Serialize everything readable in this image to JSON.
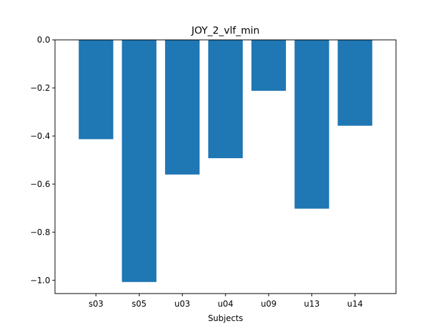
{
  "chart_data": {
    "type": "bar",
    "title": "JOY_2_vlf_min",
    "xlabel": "Subjects",
    "ylabel": "",
    "categories": [
      "s03",
      "s05",
      "u03",
      "u04",
      "u09",
      "u13",
      "u14"
    ],
    "values": [
      -0.413,
      -1.007,
      -0.56,
      -0.492,
      -0.212,
      -0.702,
      -0.357
    ],
    "ylim": [
      -1.055,
      0.0
    ],
    "yticks": [
      0.0,
      -0.2,
      -0.4,
      -0.6,
      -0.8,
      -1.0
    ],
    "ytick_labels": [
      "0.0",
      "−0.2",
      "−0.4",
      "−0.6",
      "−0.8",
      "−1.0"
    ],
    "bar_color": "#1f77b4",
    "grid": false,
    "legend": "none"
  }
}
